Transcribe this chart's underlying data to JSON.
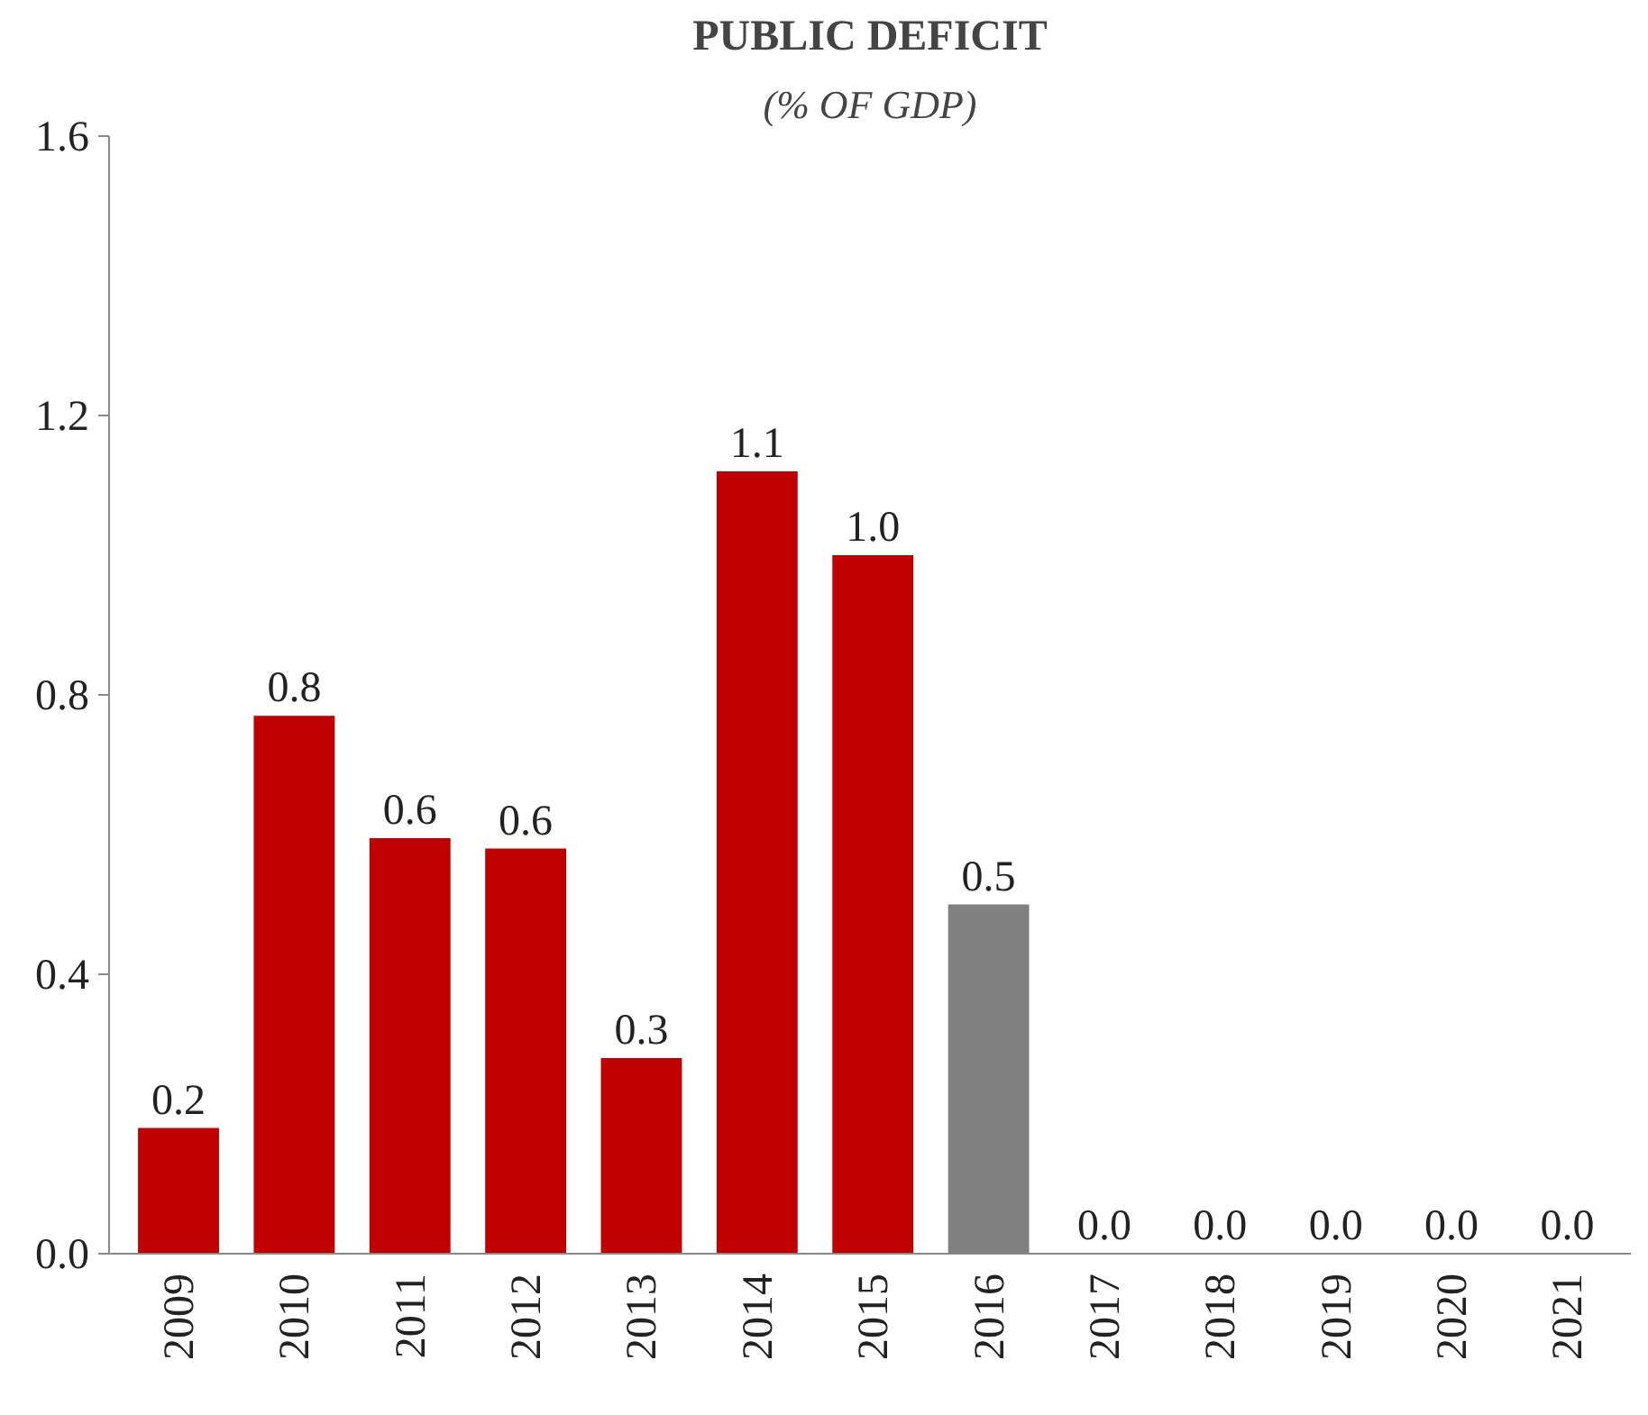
{
  "chart_data": {
    "type": "bar",
    "title": "PUBLIC DEFICIT",
    "subtitle": "(% OF GDP)",
    "categories": [
      "2009",
      "2010",
      "2011",
      "2012",
      "2013",
      "2014",
      "2015",
      "2016",
      "2017",
      "2018",
      "2019",
      "2020",
      "2021"
    ],
    "values": [
      0.18,
      0.77,
      0.595,
      0.58,
      0.28,
      1.12,
      1.0,
      0.5,
      0,
      0,
      0,
      0,
      0
    ],
    "colors": [
      "#c00000",
      "#c00000",
      "#c00000",
      "#c00000",
      "#c00000",
      "#c00000",
      "#c00000",
      "#808080",
      "#c00000",
      "#c00000",
      "#c00000",
      "#c00000",
      "#c00000"
    ],
    "value_labels": [
      "0.2",
      "0.8",
      "0.6",
      "0.6",
      "0.3",
      "1.1",
      "1.0",
      "0.5",
      "0.0",
      "0.0",
      "0.0",
      "0.0",
      "0.0"
    ],
    "ylim": [
      0,
      1.6
    ],
    "yticks": [
      {
        "value": 0,
        "label": "0.0"
      },
      {
        "value": 0.4,
        "label": "0.4"
      },
      {
        "value": 0.8,
        "label": "0.8"
      },
      {
        "value": 1.2,
        "label": "1.2"
      },
      {
        "value": 1.6,
        "label": "1.6"
      }
    ],
    "grid": false
  }
}
